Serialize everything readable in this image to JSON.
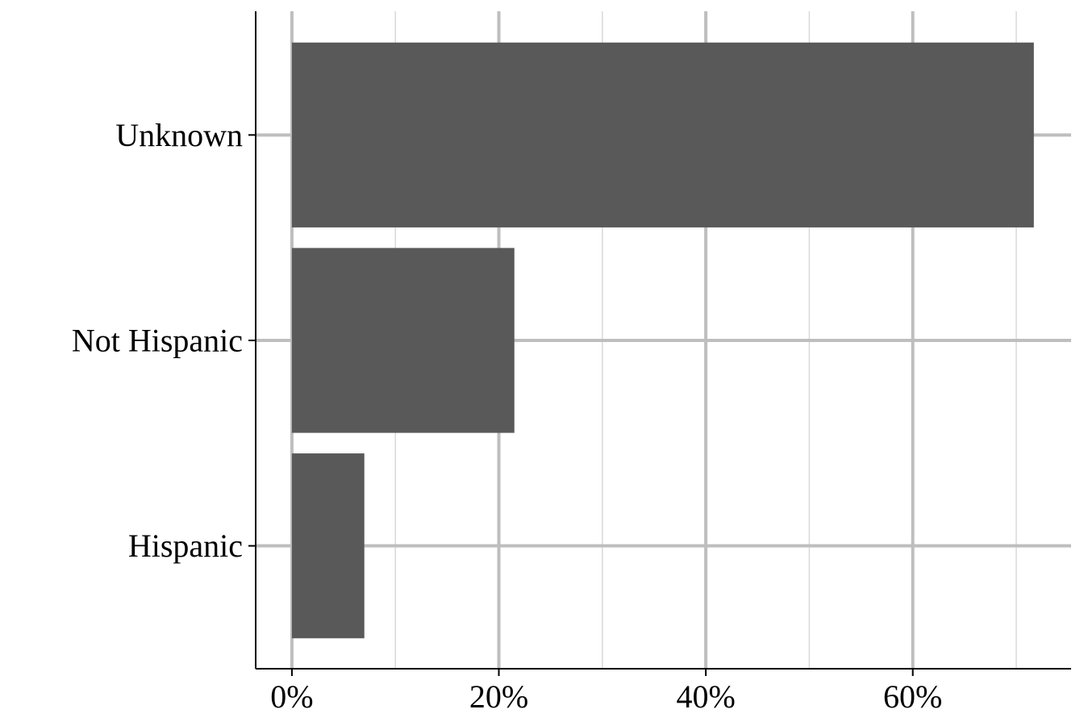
{
  "chart_data": {
    "type": "bar",
    "orientation": "horizontal",
    "categories": [
      "Hispanic",
      "Not Hispanic",
      "Unknown"
    ],
    "values": [
      7.0,
      21.5,
      71.7
    ],
    "value_unit": "%",
    "title": "",
    "xlabel": "",
    "ylabel": "",
    "xlim": [
      -3.5,
      75.3
    ],
    "x_ticks": [
      {
        "value": 0,
        "label": "0%"
      },
      {
        "value": 20,
        "label": "20%"
      },
      {
        "value": 40,
        "label": "40%"
      },
      {
        "value": 60,
        "label": "60%"
      }
    ],
    "x_minor_ticks": [
      10,
      30,
      50,
      70
    ],
    "grid": true,
    "legend": "none",
    "colors": {
      "bar": "#595959",
      "grid_major": "#bebebe",
      "grid_minor": "#d9d9d9",
      "axis": "#000000"
    }
  }
}
